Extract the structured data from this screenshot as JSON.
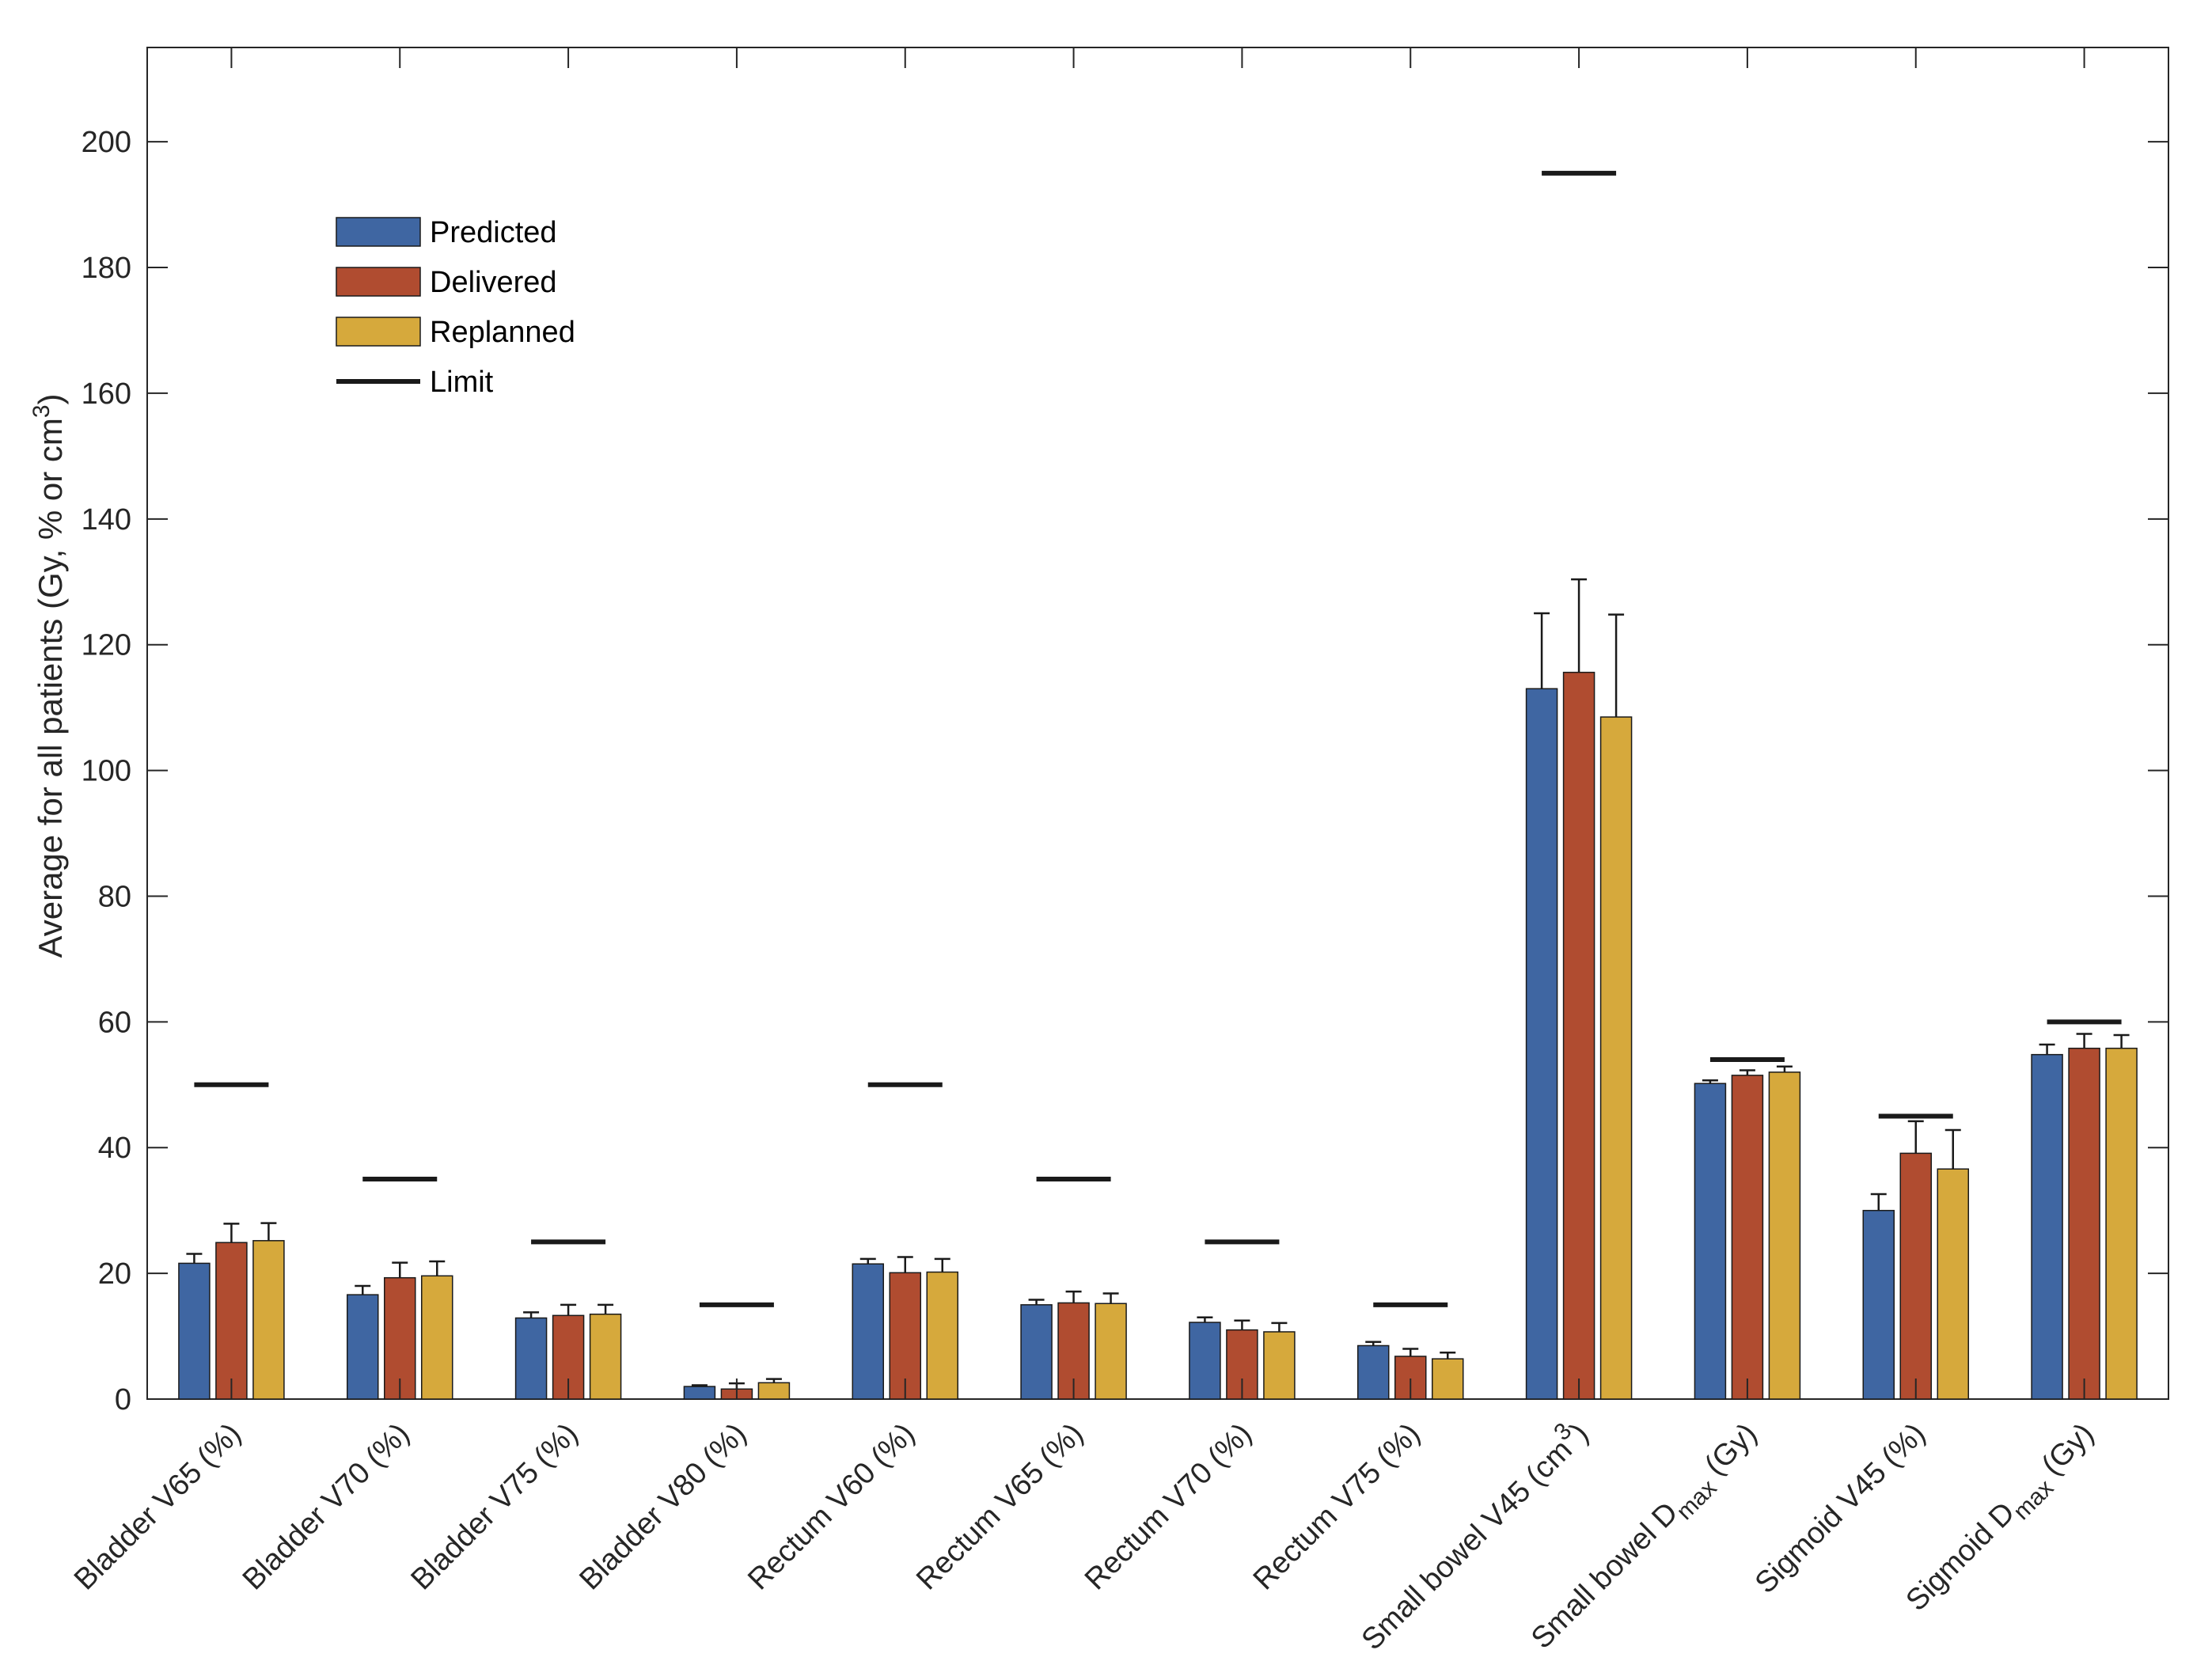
{
  "chart_data": {
    "type": "bar",
    "ylabel": "Average for all patients (Gy, % or cm",
    "ylabel_sup": "3",
    "ylabel_close": ")",
    "ylim": [
      0,
      215
    ],
    "yticks": [
      0,
      20,
      40,
      60,
      80,
      100,
      120,
      140,
      160,
      180,
      200
    ],
    "grid": false,
    "legend_placement": "top-left",
    "categories": [
      {
        "label": "Bladder V65 (%)"
      },
      {
        "label": "Bladder V70 (%)"
      },
      {
        "label": "Bladder V75 (%)"
      },
      {
        "label": "Bladder V80 (%)"
      },
      {
        "label": "Rectum V60 (%)"
      },
      {
        "label": "Rectum V65 (%)"
      },
      {
        "label": "Rectum V70 (%)"
      },
      {
        "label": "Rectum V75 (%)"
      },
      {
        "label": "Small bowel V45 (cm",
        "sup": "3",
        "tail": ")"
      },
      {
        "label": "Small bowel D",
        "sub": "max",
        "tail": " (Gy)"
      },
      {
        "label": "Sigmoid V45 (%)"
      },
      {
        "label": "Sigmoid D",
        "sub": "max",
        "tail": " (Gy)"
      }
    ],
    "series": [
      {
        "name": "Predicted",
        "color": "#3f66a2",
        "values": [
          21.6,
          16.6,
          12.9,
          2.0,
          21.5,
          15.0,
          12.2,
          8.5,
          113.0,
          50.2,
          30.0,
          54.8
        ],
        "errors": [
          1.5,
          1.4,
          0.9,
          0.2,
          0.8,
          0.8,
          0.8,
          0.6,
          12.0,
          0.5,
          2.6,
          1.6
        ]
      },
      {
        "name": "Delivered",
        "color": "#b04c30",
        "values": [
          24.9,
          19.3,
          13.3,
          1.6,
          20.1,
          15.3,
          11.0,
          6.8,
          115.6,
          51.5,
          39.1,
          55.8
        ],
        "errors": [
          3.0,
          2.4,
          1.7,
          0.9,
          2.5,
          1.8,
          1.5,
          1.2,
          14.8,
          0.8,
          5.1,
          2.3
        ]
      },
      {
        "name": "Replanned",
        "color": "#d6a93c",
        "values": [
          25.2,
          19.6,
          13.5,
          2.6,
          20.2,
          15.2,
          10.7,
          6.4,
          108.5,
          52.0,
          36.6,
          55.8
        ],
        "errors": [
          2.8,
          2.3,
          1.5,
          0.6,
          2.1,
          1.6,
          1.4,
          1.0,
          16.3,
          0.9,
          6.2,
          2.1
        ]
      }
    ],
    "limits": {
      "name": "Limit",
      "color": "#1a1a1a",
      "values": [
        50,
        35,
        25,
        15,
        50,
        35,
        25,
        15,
        195,
        54,
        45,
        60
      ]
    }
  }
}
